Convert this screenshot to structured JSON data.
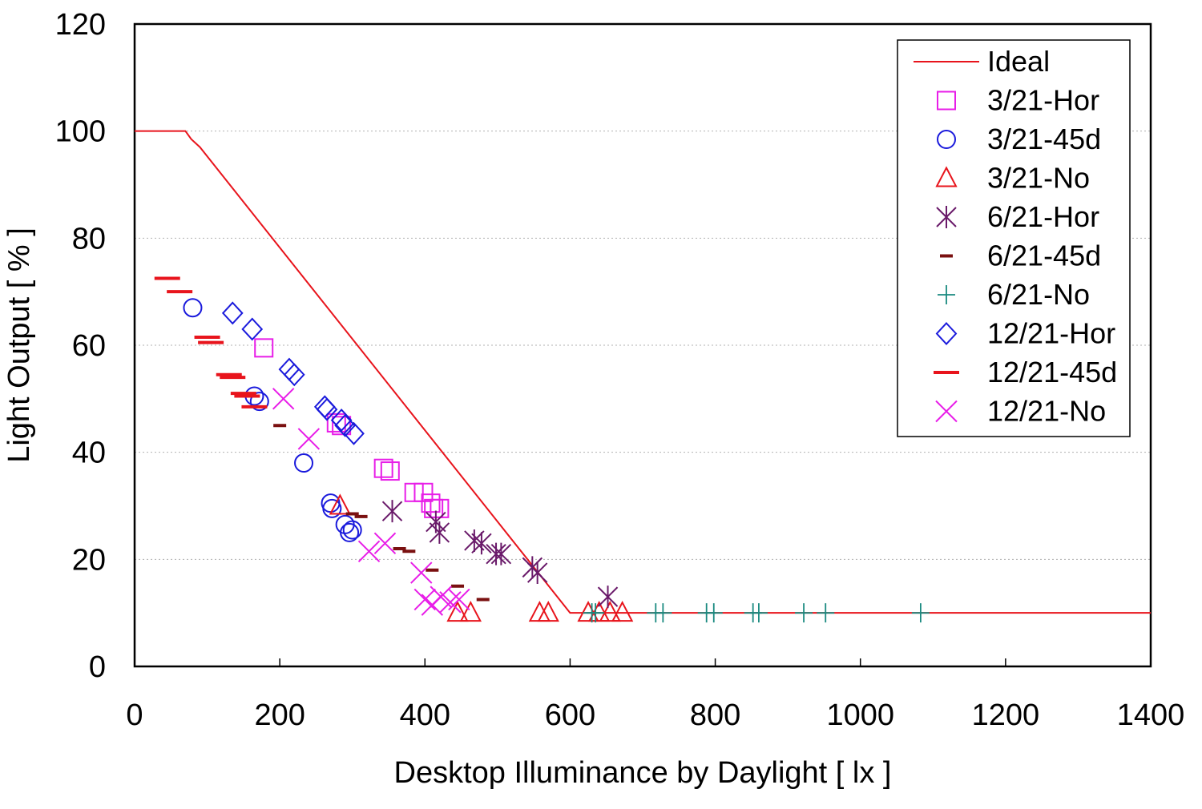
{
  "chart_data": {
    "type": "scatter",
    "xlabel": "Desktop Illuminance by Daylight [ lx ]",
    "ylabel": "Light Output [ % ]",
    "xlim": [
      0,
      1400
    ],
    "ylim": [
      0,
      120
    ],
    "xticks": [
      0,
      200,
      400,
      600,
      800,
      1000,
      1200,
      1400
    ],
    "yticks": [
      0,
      20,
      40,
      60,
      80,
      100,
      120
    ],
    "grid": "horizontal-dotted",
    "legend_position": "top-right",
    "series": [
      {
        "name": "Ideal",
        "marker": "line",
        "color": "#e8141c",
        "points": [
          [
            0,
            100
          ],
          [
            70,
            100
          ],
          [
            78,
            98.5
          ],
          [
            90,
            97
          ],
          [
            600,
            10
          ],
          [
            1400,
            10
          ]
        ]
      },
      {
        "name": "3/21-Hor",
        "marker": "square",
        "color": "#e81ee8",
        "points": [
          [
            178,
            59.5
          ],
          [
            278,
            45.5
          ],
          [
            285,
            45
          ],
          [
            343,
            37
          ],
          [
            352,
            36.5
          ],
          [
            385,
            32.5
          ],
          [
            398,
            32.5
          ],
          [
            408,
            30.5
          ],
          [
            412,
            29.5
          ],
          [
            420,
            29.5
          ]
        ]
      },
      {
        "name": "3/21-45d",
        "marker": "circle",
        "color": "#1a1adc",
        "points": [
          [
            80,
            67
          ],
          [
            165,
            50.5
          ],
          [
            172,
            49.5
          ],
          [
            233,
            38
          ],
          [
            270,
            30.5
          ],
          [
            272,
            29.5
          ],
          [
            290,
            26.5
          ],
          [
            296,
            25
          ],
          [
            300,
            25.5
          ]
        ]
      },
      {
        "name": "3/21-No",
        "marker": "triangle",
        "color": "#e8141c",
        "points": [
          [
            283,
            30
          ],
          [
            445,
            10
          ],
          [
            463,
            10
          ],
          [
            558,
            10
          ],
          [
            570,
            10
          ],
          [
            625,
            10
          ],
          [
            640,
            10
          ],
          [
            655,
            10
          ],
          [
            672,
            10
          ]
        ]
      },
      {
        "name": "6/21-Hor",
        "marker": "asterisk",
        "color": "#6a1a6a",
        "points": [
          [
            355,
            29
          ],
          [
            415,
            27
          ],
          [
            420,
            25
          ],
          [
            468,
            23.5
          ],
          [
            478,
            23
          ],
          [
            498,
            21
          ],
          [
            505,
            21
          ],
          [
            548,
            18.5
          ],
          [
            555,
            17.5
          ],
          [
            652,
            13
          ]
        ]
      },
      {
        "name": "6/21-45d",
        "marker": "dash",
        "color": "#7a1010",
        "points": [
          [
            200,
            45
          ],
          [
            300,
            28.5
          ],
          [
            312,
            28
          ],
          [
            365,
            22
          ],
          [
            378,
            21.5
          ],
          [
            410,
            18
          ],
          [
            445,
            15
          ],
          [
            480,
            12.5
          ]
        ]
      },
      {
        "name": "6/21-No",
        "marker": "plus",
        "color": "#1a8a80",
        "points": [
          [
            630,
            10
          ],
          [
            635,
            10
          ],
          [
            718,
            10
          ],
          [
            728,
            10
          ],
          [
            788,
            10
          ],
          [
            798,
            10
          ],
          [
            852,
            10
          ],
          [
            860,
            10
          ],
          [
            922,
            10
          ],
          [
            952,
            10
          ],
          [
            1083,
            10
          ]
        ]
      },
      {
        "name": "12/21-Hor",
        "marker": "diamond",
        "color": "#1a1adc",
        "points": [
          [
            135,
            66
          ],
          [
            162,
            63
          ],
          [
            213,
            55.5
          ],
          [
            220,
            54.5
          ],
          [
            262,
            48.5
          ],
          [
            265,
            48
          ],
          [
            285,
            46
          ],
          [
            290,
            45
          ],
          [
            302,
            43.5
          ]
        ]
      },
      {
        "name": "12/21-45d",
        "marker": "bar",
        "color": "#e8141c",
        "points": [
          [
            45,
            72.5
          ],
          [
            62,
            70
          ],
          [
            100,
            61.5
          ],
          [
            105,
            60.5
          ],
          [
            130,
            54.5
          ],
          [
            135,
            54
          ],
          [
            150,
            51
          ],
          [
            155,
            50.5
          ],
          [
            165,
            48.5
          ]
        ]
      },
      {
        "name": "12/21-No",
        "marker": "x",
        "color": "#e81ee8",
        "points": [
          [
            205,
            50
          ],
          [
            240,
            42.5
          ],
          [
            323,
            21.5
          ],
          [
            345,
            23
          ],
          [
            395,
            17.5
          ],
          [
            400,
            12.5
          ],
          [
            410,
            11.5
          ],
          [
            422,
            13
          ],
          [
            435,
            12
          ],
          [
            447,
            12.5
          ]
        ]
      }
    ]
  }
}
